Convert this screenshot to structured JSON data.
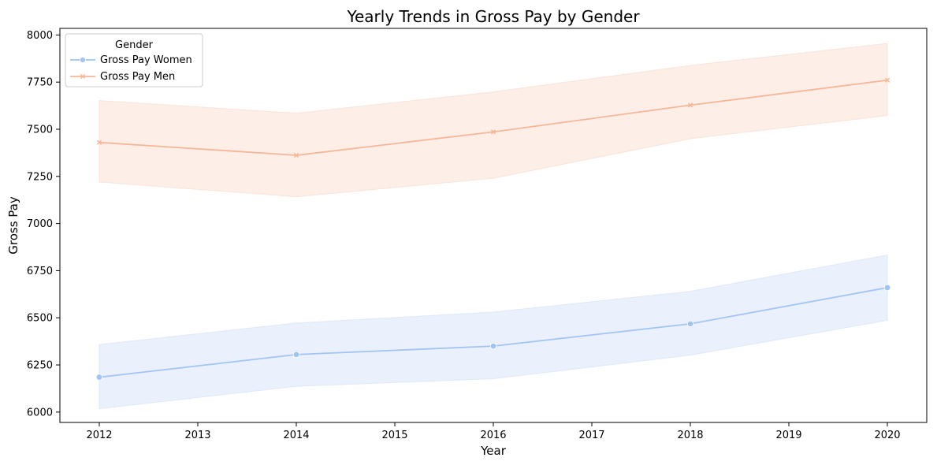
{
  "chart_data": {
    "type": "line",
    "title": "Yearly Trends in Gross Pay by Gender",
    "xlabel": "Year",
    "ylabel": "Gross Pay",
    "x": [
      2012,
      2014,
      2016,
      2018,
      2020
    ],
    "xticks": [
      2012,
      2013,
      2014,
      2015,
      2016,
      2017,
      2018,
      2019,
      2020
    ],
    "yticks": [
      6000,
      6250,
      6500,
      6750,
      7000,
      7250,
      7500,
      7750,
      8000
    ],
    "xlim": [
      2011.6,
      2020.4
    ],
    "ylim": [
      5945,
      8035
    ],
    "grid": false,
    "legend": {
      "title": "Gender",
      "position": "top-left"
    },
    "series": [
      {
        "name": "Gross Pay Women",
        "marker": "circle",
        "color": "#a1c4f7",
        "band_color": "#dce8fb",
        "values": [
          6185,
          6305,
          6350,
          6468,
          6660
        ],
        "ci_low": [
          6018,
          6137,
          6177,
          6302,
          6487
        ],
        "ci_high": [
          6358,
          6472,
          6530,
          6640,
          6833
        ]
      },
      {
        "name": "Gross Pay Men",
        "marker": "x",
        "color": "#f7b797",
        "band_color": "#fbe3d7",
        "values": [
          7430,
          7362,
          7486,
          7628,
          7760
        ],
        "ci_low": [
          7220,
          7142,
          7240,
          7450,
          7573
        ],
        "ci_high": [
          7652,
          7585,
          7698,
          7838,
          7955
        ]
      }
    ]
  }
}
